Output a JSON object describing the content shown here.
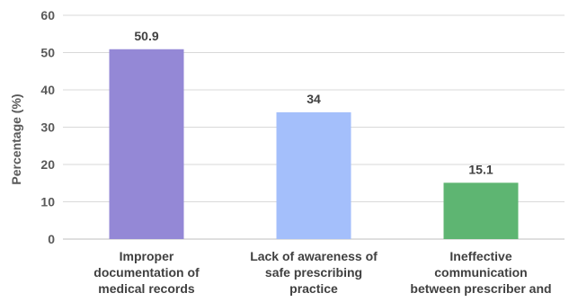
{
  "chart_data": {
    "type": "bar",
    "title": "",
    "xlabel": "",
    "ylabel": "Percentage (%)",
    "ylim": [
      0,
      60
    ],
    "yticks": [
      0,
      10,
      20,
      30,
      40,
      50,
      60
    ],
    "grid": true,
    "categories": [
      [
        "Improper",
        "documentation of",
        "medical records"
      ],
      [
        "Lack of awareness of",
        "safe prescribing",
        "practice"
      ],
      [
        "Ineffective",
        "communication",
        "between prescriber and"
      ]
    ],
    "values": [
      50.9,
      34,
      15.1
    ],
    "value_labels": [
      "50.9",
      "34",
      "15.1"
    ],
    "colors": [
      "#9488d6",
      "#a4bffb",
      "#5eb572"
    ]
  }
}
